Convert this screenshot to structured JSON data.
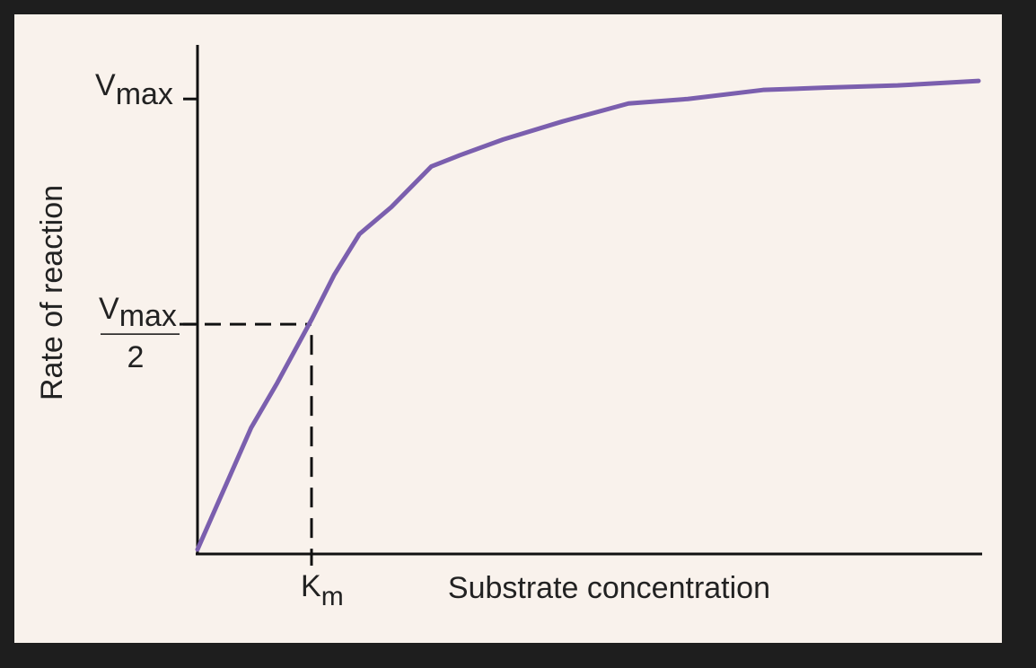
{
  "chart_data": {
    "type": "line",
    "x_label": "Substrate concentration",
    "y_label": "Rate of reaction",
    "xlim": [
      0,
      6.85
    ],
    "ylim": [
      0,
      1.12
    ],
    "xticks": [
      {
        "value": 1,
        "label": "K",
        "sub": "m"
      }
    ],
    "yticks": [
      {
        "value": 0.5,
        "label": "V",
        "sub": "max",
        "denominator": "2"
      },
      {
        "value": 1,
        "label": "V",
        "sub": "max"
      }
    ],
    "series": [
      {
        "color": "#7b5fae",
        "x": [
          0,
          0.2,
          0.47,
          0.7,
          1,
          1.2,
          1.42,
          1.7,
          2.05,
          2.3,
          2.68,
          3.2,
          3.78,
          4.3,
          4.96,
          5.5,
          6.14,
          6.85
        ],
        "values": [
          0,
          0.115,
          0.27,
          0.37,
          0.51,
          0.61,
          0.7,
          0.76,
          0.85,
          0.875,
          0.91,
          0.95,
          0.99,
          1.0,
          1.02,
          1.025,
          1.03,
          1.04
        ]
      }
    ]
  }
}
